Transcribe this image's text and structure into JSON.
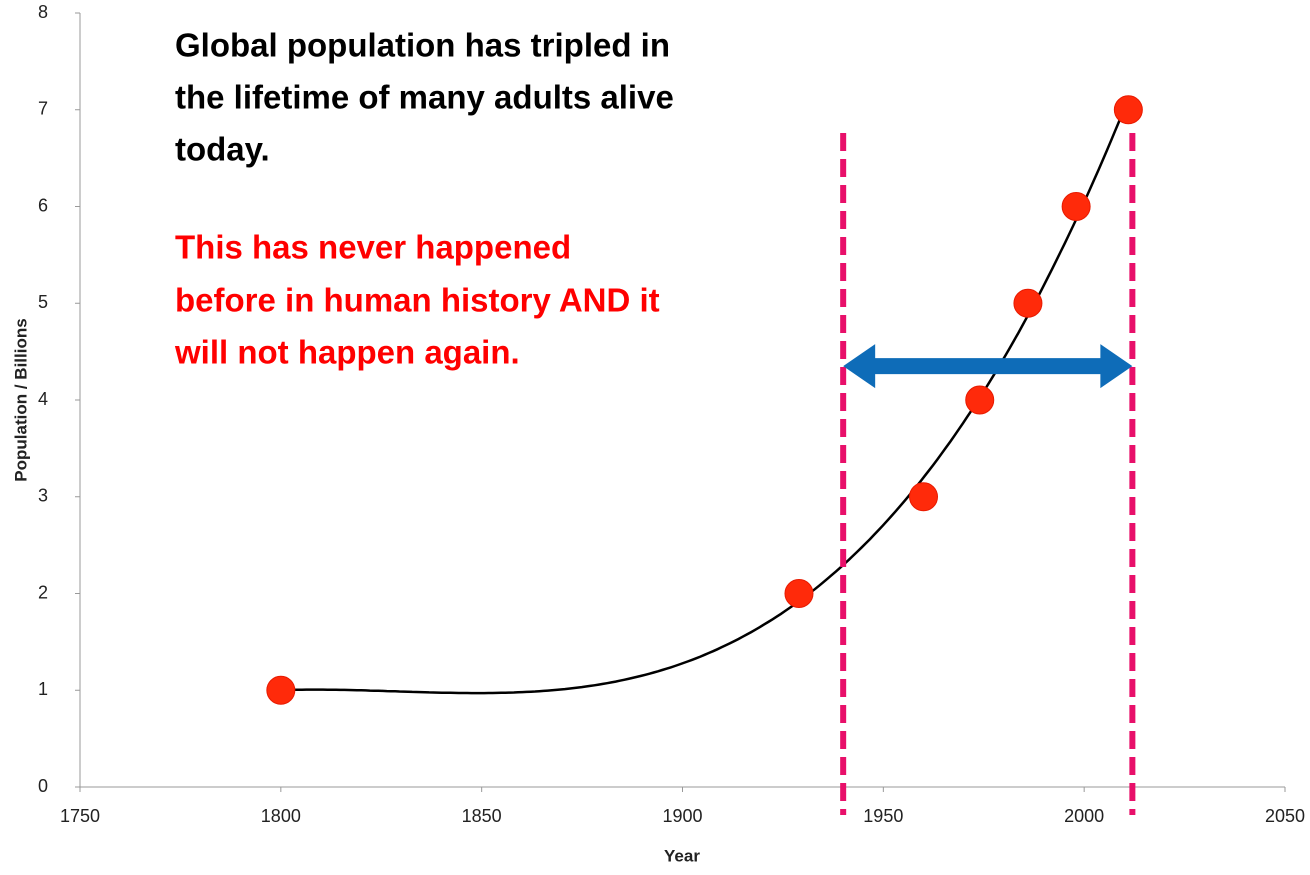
{
  "chart_data": {
    "type": "scatter",
    "x_label": "Year",
    "y_label": "Population / Billions",
    "x": [
      1800,
      1929,
      1960,
      1974,
      1986,
      1998,
      2011
    ],
    "series": [
      {
        "color": "#ff2a0a",
        "values": [
          1,
          2,
          3,
          4,
          5,
          6,
          7
        ]
      }
    ],
    "trendline": {
      "kind": "polynomial",
      "order": 3,
      "color": "#000000"
    },
    "xlim": [
      1750,
      2050
    ],
    "xticks": [
      1750,
      1800,
      1850,
      1900,
      1950,
      2000,
      2050
    ],
    "ylim": [
      0,
      8
    ],
    "yticks": [
      0,
      1,
      2,
      3,
      4,
      5,
      6,
      7,
      8
    ],
    "grid": false,
    "annotations": [
      {
        "lines": [
          "Global population has tripled in",
          "the lifetime of many adults alive",
          "today."
        ],
        "color": "#000000"
      },
      {
        "lines": [
          "This has never happened",
          "before in human history AND it",
          "will not happen again."
        ],
        "color": "#ff0000"
      }
    ],
    "vlines": {
      "x": [
        1940,
        2012
      ],
      "color": "#e8106a"
    },
    "arrow": {
      "x": [
        1940,
        2012
      ],
      "y": 4.35,
      "color": "#0e6cb8"
    }
  }
}
